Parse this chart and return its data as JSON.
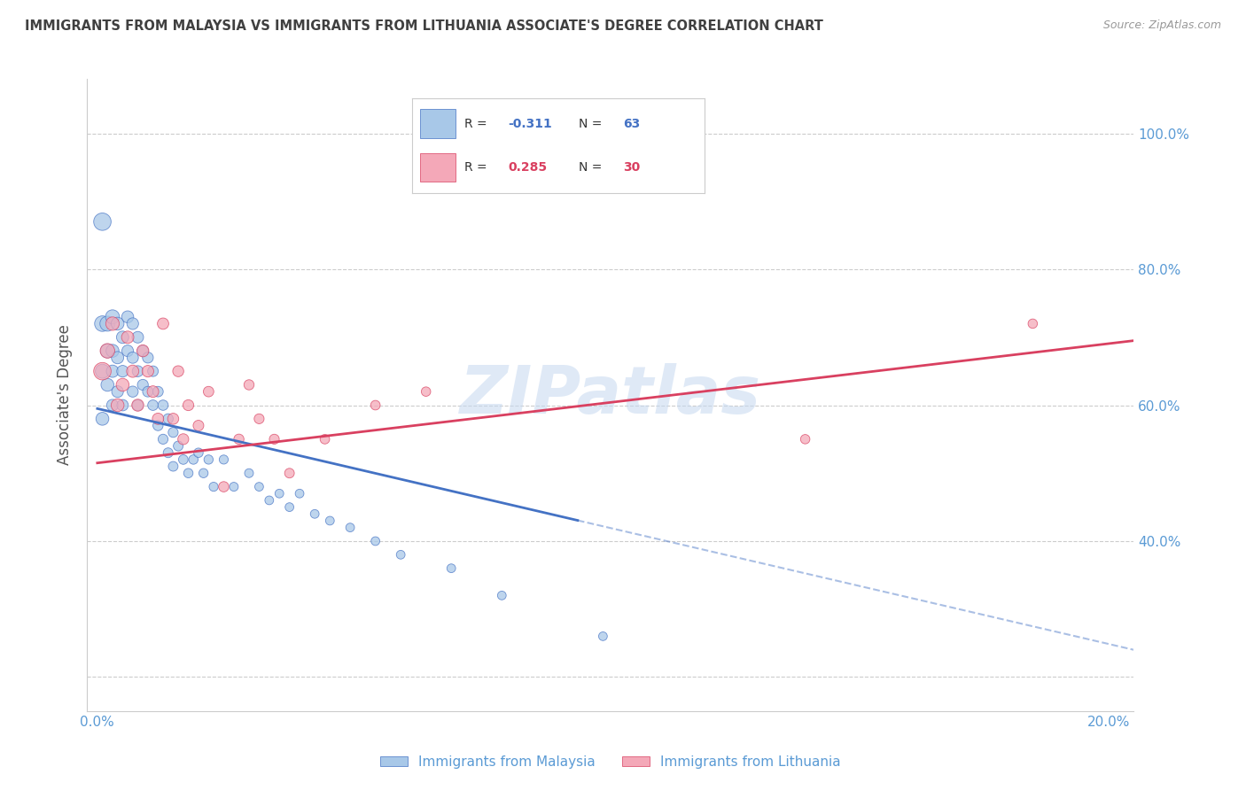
{
  "title": "IMMIGRANTS FROM MALAYSIA VS IMMIGRANTS FROM LITHUANIA ASSOCIATE'S DEGREE CORRELATION CHART",
  "source": "Source: ZipAtlas.com",
  "ylabel": "Associate's Degree",
  "x_ticks": [
    0.0,
    0.05,
    0.1,
    0.15,
    0.2
  ],
  "x_tick_labels": [
    "0.0%",
    "",
    "",
    "",
    "20.0%"
  ],
  "y_ticks": [
    0.2,
    0.4,
    0.6,
    0.8,
    1.0
  ],
  "y_tick_labels_right": [
    "",
    "40.0%",
    "60.0%",
    "80.0%",
    "100.0%"
  ],
  "xlim": [
    -0.002,
    0.205
  ],
  "ylim": [
    0.15,
    1.08
  ],
  "color_malaysia": "#a8c8e8",
  "color_lithuania": "#f4a8b8",
  "color_trend_malaysia": "#4472c4",
  "color_trend_lithuania": "#d94060",
  "color_axis_label": "#5b9bd5",
  "color_title": "#404040",
  "watermark": "ZIPatlas",
  "malaysia_x": [
    0.001,
    0.001,
    0.001,
    0.001,
    0.002,
    0.002,
    0.002,
    0.003,
    0.003,
    0.003,
    0.003,
    0.004,
    0.004,
    0.004,
    0.005,
    0.005,
    0.005,
    0.006,
    0.006,
    0.007,
    0.007,
    0.007,
    0.008,
    0.008,
    0.008,
    0.009,
    0.009,
    0.01,
    0.01,
    0.011,
    0.011,
    0.012,
    0.012,
    0.013,
    0.013,
    0.014,
    0.014,
    0.015,
    0.015,
    0.016,
    0.017,
    0.018,
    0.019,
    0.02,
    0.021,
    0.022,
    0.023,
    0.025,
    0.027,
    0.03,
    0.032,
    0.034,
    0.036,
    0.038,
    0.04,
    0.043,
    0.046,
    0.05,
    0.055,
    0.06,
    0.07,
    0.08,
    0.1
  ],
  "malaysia_y": [
    0.87,
    0.72,
    0.65,
    0.58,
    0.72,
    0.68,
    0.63,
    0.73,
    0.68,
    0.65,
    0.6,
    0.72,
    0.67,
    0.62,
    0.7,
    0.65,
    0.6,
    0.73,
    0.68,
    0.72,
    0.67,
    0.62,
    0.7,
    0.65,
    0.6,
    0.68,
    0.63,
    0.67,
    0.62,
    0.65,
    0.6,
    0.62,
    0.57,
    0.6,
    0.55,
    0.58,
    0.53,
    0.56,
    0.51,
    0.54,
    0.52,
    0.5,
    0.52,
    0.53,
    0.5,
    0.52,
    0.48,
    0.52,
    0.48,
    0.5,
    0.48,
    0.46,
    0.47,
    0.45,
    0.47,
    0.44,
    0.43,
    0.42,
    0.4,
    0.38,
    0.36,
    0.32,
    0.26
  ],
  "malaysia_sizes": [
    200,
    160,
    130,
    110,
    150,
    130,
    110,
    130,
    110,
    100,
    90,
    110,
    100,
    90,
    100,
    90,
    85,
    95,
    88,
    90,
    85,
    80,
    88,
    82,
    78,
    82,
    78,
    78,
    74,
    75,
    72,
    72,
    68,
    70,
    65,
    68,
    63,
    65,
    62,
    63,
    60,
    58,
    58,
    58,
    56,
    56,
    54,
    54,
    52,
    52,
    50,
    50,
    50,
    50,
    50,
    50,
    50,
    50,
    50,
    50,
    50,
    50,
    50
  ],
  "lithuania_x": [
    0.001,
    0.002,
    0.003,
    0.004,
    0.005,
    0.006,
    0.007,
    0.008,
    0.009,
    0.01,
    0.011,
    0.012,
    0.013,
    0.015,
    0.016,
    0.017,
    0.018,
    0.02,
    0.022,
    0.025,
    0.028,
    0.03,
    0.032,
    0.035,
    0.038,
    0.045,
    0.055,
    0.065,
    0.14,
    0.185
  ],
  "lithuania_y": [
    0.65,
    0.68,
    0.72,
    0.6,
    0.63,
    0.7,
    0.65,
    0.6,
    0.68,
    0.65,
    0.62,
    0.58,
    0.72,
    0.58,
    0.65,
    0.55,
    0.6,
    0.57,
    0.62,
    0.48,
    0.55,
    0.63,
    0.58,
    0.55,
    0.5,
    0.55,
    0.6,
    0.62,
    0.55,
    0.72
  ],
  "lithuania_sizes": [
    200,
    140,
    120,
    110,
    110,
    100,
    100,
    95,
    95,
    90,
    88,
    85,
    85,
    82,
    80,
    78,
    78,
    75,
    72,
    70,
    68,
    68,
    65,
    65,
    62,
    60,
    60,
    58,
    58,
    58
  ],
  "trend_mal_x0": 0.0,
  "trend_mal_x1": 0.205,
  "trend_mal_y0": 0.595,
  "trend_mal_y1": 0.24,
  "trend_mal_solid_end": 0.095,
  "trend_lit_x0": 0.0,
  "trend_lit_x1": 0.205,
  "trend_lit_y0": 0.515,
  "trend_lit_y1": 0.695,
  "grid_color": "#cccccc",
  "background_color": "#ffffff"
}
